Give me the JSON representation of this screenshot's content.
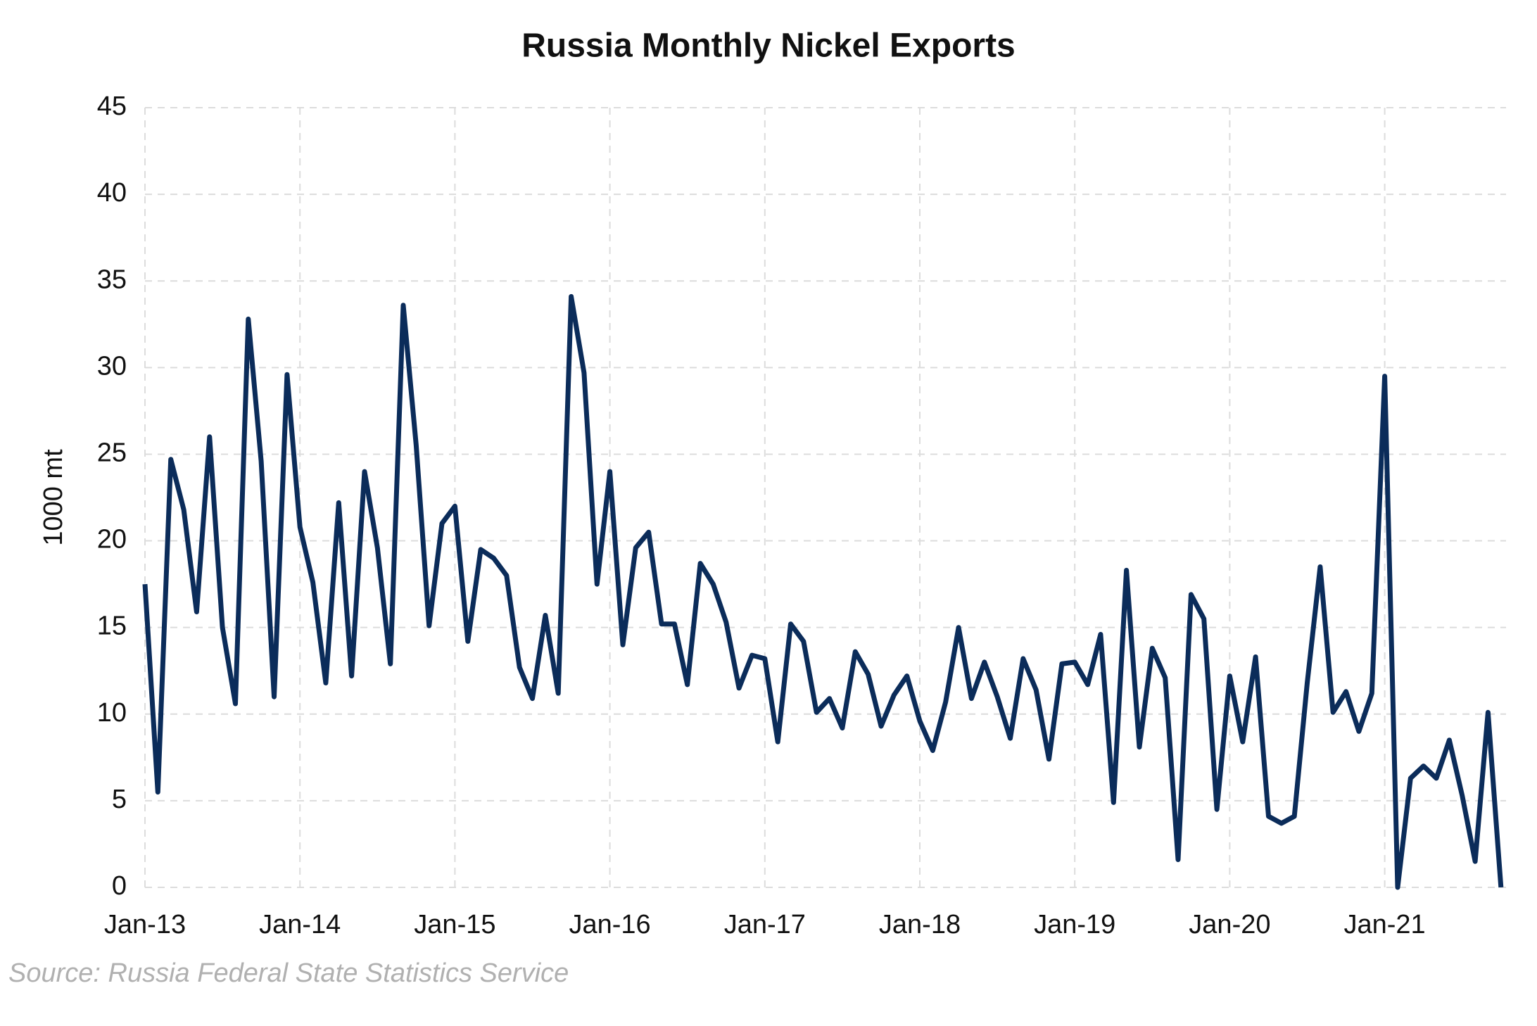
{
  "chart_data": {
    "type": "line",
    "title": "Russia Monthly Nickel Exports",
    "y_label": "1000 mt",
    "source": "Source: Russia Federal State Statistics Service",
    "categories": [
      "Jan-13",
      null,
      null,
      null,
      null,
      null,
      null,
      null,
      null,
      null,
      null,
      null,
      "Jan-14",
      null,
      null,
      null,
      null,
      null,
      null,
      null,
      null,
      null,
      null,
      null,
      "Jan-15",
      null,
      null,
      null,
      null,
      null,
      null,
      null,
      null,
      null,
      null,
      null,
      "Jan-16",
      null,
      null,
      null,
      null,
      null,
      null,
      null,
      null,
      null,
      null,
      null,
      "Jan-17",
      null,
      null,
      null,
      null,
      null,
      null,
      null,
      null,
      null,
      null,
      null,
      "Jan-18",
      null,
      null,
      null,
      null,
      null,
      null,
      null,
      null,
      null,
      null,
      null,
      "Jan-19",
      null,
      null,
      null,
      null,
      null,
      null,
      null,
      null,
      null,
      null,
      null,
      "Jan-20",
      null,
      null,
      null,
      null,
      null,
      null,
      null,
      null,
      null,
      null,
      null,
      "Jan-21",
      null,
      null,
      null,
      null,
      null,
      null,
      null,
      null,
      null
    ],
    "values": [
      17.5,
      5.5,
      24.7,
      21.8,
      15.9,
      26,
      15,
      10.6,
      32.8,
      24.6,
      11,
      29.6,
      20.8,
      17.6,
      11.8,
      22.2,
      12.2,
      24,
      19.6,
      12.9,
      33.6,
      25.5,
      15.1,
      21,
      22,
      14.2,
      19.5,
      19,
      18,
      12.7,
      10.9,
      15.7,
      11.2,
      34.1,
      29.7,
      17.5,
      24,
      14,
      19.6,
      20.5,
      15.2,
      15.2,
      11.7,
      18.7,
      17.5,
      15.3,
      11.5,
      13.4,
      13.2,
      8.4,
      15.2,
      14.2,
      10.1,
      10.9,
      9.2,
      13.6,
      12.3,
      9.3,
      11.1,
      12.2,
      9.6,
      7.9,
      10.7,
      15,
      10.9,
      13,
      11,
      8.6,
      13.2,
      11.4,
      7.4,
      12.9,
      13,
      11.7,
      14.6,
      4.9,
      18.3,
      8.1,
      13.8,
      12.1,
      1.6,
      16.9,
      15.5,
      4.5,
      12.2,
      8.4,
      13.3,
      4.1,
      3.7,
      4.1,
      11.8,
      18.5,
      10.1,
      11.3,
      9,
      11.2,
      29.5,
      0,
      6.3,
      7,
      6.3,
      8.5,
      5.3,
      1.5,
      10.1,
      0
    ],
    "color": "#0b2c5a",
    "ylim": [
      0,
      45
    ],
    "yticks": [
      0,
      5,
      10,
      15,
      20,
      25,
      30,
      35,
      40,
      45
    ],
    "grid": true
  }
}
